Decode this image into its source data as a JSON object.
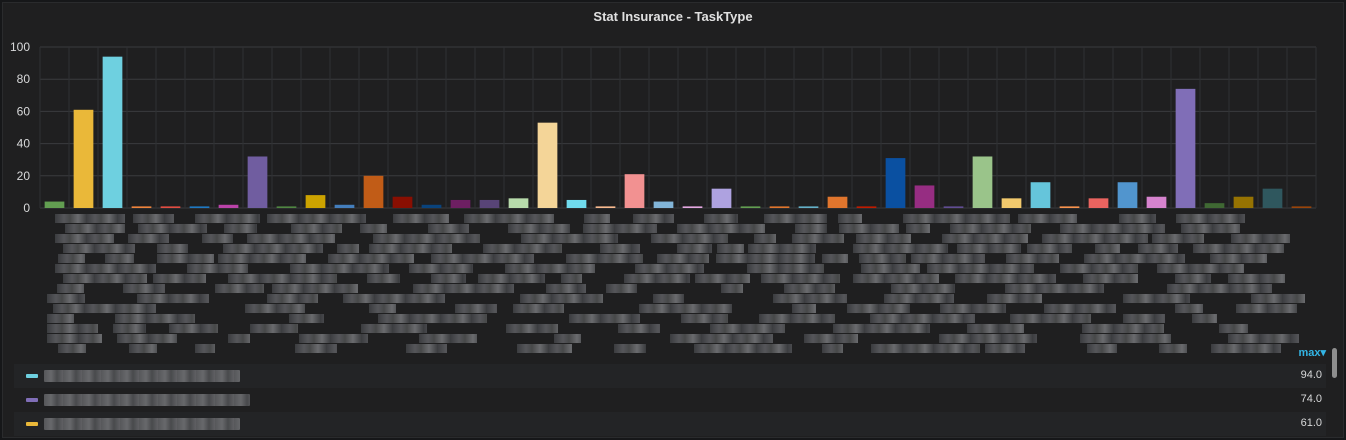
{
  "panel": {
    "title": "Stat Insurance - TaskType"
  },
  "chart_data": {
    "type": "bar",
    "title": "Stat Insurance - TaskType",
    "ylim": [
      0,
      100
    ],
    "yticks": [
      0,
      20,
      40,
      60,
      80,
      100
    ],
    "grid": true,
    "values": [
      4,
      61,
      94,
      1,
      1,
      1,
      2,
      32,
      1,
      8,
      2,
      20,
      7,
      2,
      5,
      5,
      6,
      53,
      5,
      1,
      21,
      4,
      1,
      12,
      1,
      1,
      1,
      7,
      1,
      31,
      14,
      1,
      32,
      6,
      16,
      1,
      6,
      16,
      7,
      74,
      3,
      7,
      12,
      1
    ],
    "colors": [
      "#629e51",
      "#eab839",
      "#6ed0e0",
      "#ef843c",
      "#e24d42",
      "#1f78c1",
      "#ba43a9",
      "#705da0",
      "#508642",
      "#cca300",
      "#447ebc",
      "#c15c17",
      "#890f02",
      "#0a437c",
      "#6d1f62",
      "#584477",
      "#b7dbab",
      "#f4d598",
      "#70dbed",
      "#f9ba8f",
      "#f29191",
      "#82b5d8",
      "#e5a8e2",
      "#aea2e0",
      "#629e51",
      "#e0752d",
      "#64b0c8",
      "#e0752d",
      "#bf1b00",
      "#0a50a1",
      "#962d82",
      "#614d93",
      "#9ac48a",
      "#f2c96d",
      "#65c5db",
      "#f9934e",
      "#ea6460",
      "#5195ce",
      "#d683ce",
      "#806eb7",
      "#3f6833",
      "#967302",
      "#2f575e",
      "#99440a"
    ]
  },
  "legend": {
    "sort_header": "max▾",
    "rows": [
      {
        "color": "#6ed0e0",
        "value": "94.0"
      },
      {
        "color": "#806eb7",
        "value": "74.0"
      },
      {
        "color": "#eab839",
        "value": "61.0"
      }
    ]
  }
}
